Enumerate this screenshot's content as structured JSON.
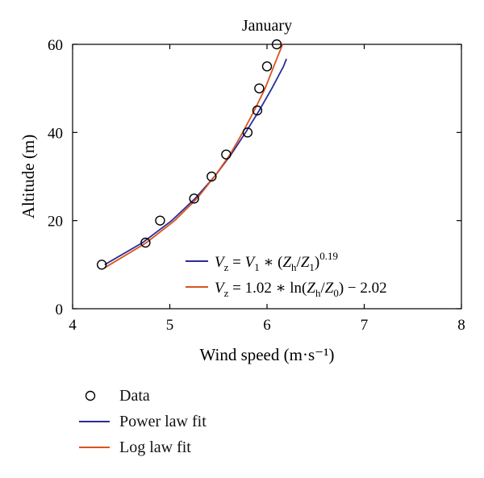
{
  "chart_data": {
    "type": "line",
    "title": "January",
    "xlabel": "Wind speed (m·s⁻¹)",
    "ylabel": "Altitude (m)",
    "xlim": [
      4,
      8
    ],
    "ylim": [
      0,
      60
    ],
    "x_ticks": [
      "4",
      "5",
      "6",
      "7",
      "8"
    ],
    "y_ticks": [
      "0",
      "20",
      "40",
      "60"
    ],
    "grid": false,
    "series": [
      {
        "name": "Data",
        "kind": "scatter",
        "marker": "open-circle",
        "color": "#000000",
        "points": [
          {
            "x": 4.3,
            "y": 10
          },
          {
            "x": 4.75,
            "y": 15
          },
          {
            "x": 4.9,
            "y": 20
          },
          {
            "x": 5.25,
            "y": 25
          },
          {
            "x": 5.43,
            "y": 30
          },
          {
            "x": 5.58,
            "y": 35
          },
          {
            "x": 5.8,
            "y": 40
          },
          {
            "x": 5.9,
            "y": 45
          },
          {
            "x": 5.92,
            "y": 50
          },
          {
            "x": 6.0,
            "y": 55
          },
          {
            "x": 6.1,
            "y": 60
          }
        ]
      },
      {
        "name": "Power law fit",
        "kind": "line",
        "color": "#2b2b9a",
        "points": [
          {
            "x": 4.33,
            "y": 10
          },
          {
            "x": 4.72,
            "y": 15
          },
          {
            "x": 5.02,
            "y": 20
          },
          {
            "x": 5.26,
            "y": 25
          },
          {
            "x": 5.46,
            "y": 30
          },
          {
            "x": 5.63,
            "y": 35
          },
          {
            "x": 5.78,
            "y": 40
          },
          {
            "x": 5.92,
            "y": 45
          },
          {
            "x": 6.05,
            "y": 50
          },
          {
            "x": 6.17,
            "y": 55
          },
          {
            "x": 6.2,
            "y": 56.7
          }
        ]
      },
      {
        "name": "Log law fit",
        "kind": "line",
        "color": "#d9541e",
        "points": [
          {
            "x": 4.33,
            "y": 9.3
          },
          {
            "x": 4.76,
            "y": 15
          },
          {
            "x": 5.05,
            "y": 20
          },
          {
            "x": 5.28,
            "y": 25
          },
          {
            "x": 5.46,
            "y": 30
          },
          {
            "x": 5.62,
            "y": 35
          },
          {
            "x": 5.75,
            "y": 40
          },
          {
            "x": 5.87,
            "y": 45
          },
          {
            "x": 5.98,
            "y": 50
          },
          {
            "x": 6.07,
            "y": 55
          },
          {
            "x": 6.16,
            "y": 60
          }
        ]
      }
    ],
    "inner_legend": {
      "position": "lower-right",
      "entries": [
        {
          "series": "Power law fit",
          "color": "#2b2b9a"
        },
        {
          "series": "Log law fit",
          "color": "#d9541e"
        }
      ]
    },
    "outer_legend": {
      "position": "below",
      "entries": [
        "Data",
        "Power law fit",
        "Log law fit"
      ]
    }
  }
}
